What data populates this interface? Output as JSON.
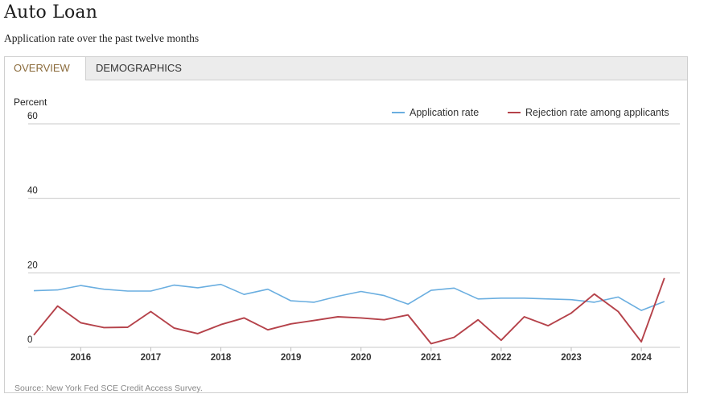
{
  "header": {
    "title": "Auto Loan",
    "subtitle": "Application rate over the past twelve months"
  },
  "tabs": [
    {
      "label": "OVERVIEW",
      "active": true
    },
    {
      "label": "DEMOGRAPHICS",
      "active": false
    }
  ],
  "source": "Source: New York Fed SCE Credit Access Survey.",
  "colors": {
    "application_rate": "#6aaee0",
    "rejection_rate": "#b5424a",
    "active_tab_text": "#8a6a3a",
    "grid": "#c8c8c8"
  },
  "chart_data": {
    "type": "line",
    "ylabel": "Percent",
    "ylim": [
      0,
      60
    ],
    "yticks": [
      0,
      20,
      40,
      60
    ],
    "grid": true,
    "legend_position": "top-right",
    "x_tick_labels": [
      "2016",
      "2017",
      "2018",
      "2019",
      "2020",
      "2021",
      "2022",
      "2023",
      "2024"
    ],
    "x_tick_values": [
      2016.0,
      2017.0,
      2018.0,
      2019.0,
      2020.0,
      2021.0,
      2022.0,
      2023.0,
      2024.0
    ],
    "xlim": [
      2015.25,
      2024.55
    ],
    "x": [
      2015.33,
      2015.67,
      2016.0,
      2016.33,
      2016.67,
      2017.0,
      2017.33,
      2017.67,
      2018.0,
      2018.33,
      2018.67,
      2019.0,
      2019.33,
      2019.67,
      2020.0,
      2020.33,
      2020.67,
      2021.0,
      2021.33,
      2021.67,
      2022.0,
      2022.33,
      2022.67,
      2023.0,
      2023.33,
      2023.67,
      2024.0,
      2024.33
    ],
    "series": [
      {
        "name": "Application rate",
        "values": [
          15.2,
          15.4,
          16.6,
          15.6,
          15.1,
          15.1,
          16.7,
          16.0,
          16.9,
          14.2,
          15.6,
          12.5,
          12.1,
          13.7,
          15.0,
          13.9,
          11.6,
          15.3,
          15.9,
          13.0,
          13.2,
          13.2,
          13.0,
          12.8,
          12.1,
          13.5,
          9.9,
          12.3
        ]
      },
      {
        "name": "Rejection rate among applicants",
        "values": [
          3.3,
          11.1,
          6.6,
          5.3,
          5.4,
          9.6,
          5.2,
          3.7,
          6.1,
          7.9,
          4.7,
          6.3,
          7.2,
          8.2,
          7.9,
          7.4,
          8.7,
          1.0,
          2.7,
          7.4,
          1.9,
          8.2,
          5.8,
          9.2,
          14.3,
          9.6,
          1.5,
          18.6
        ]
      }
    ]
  }
}
